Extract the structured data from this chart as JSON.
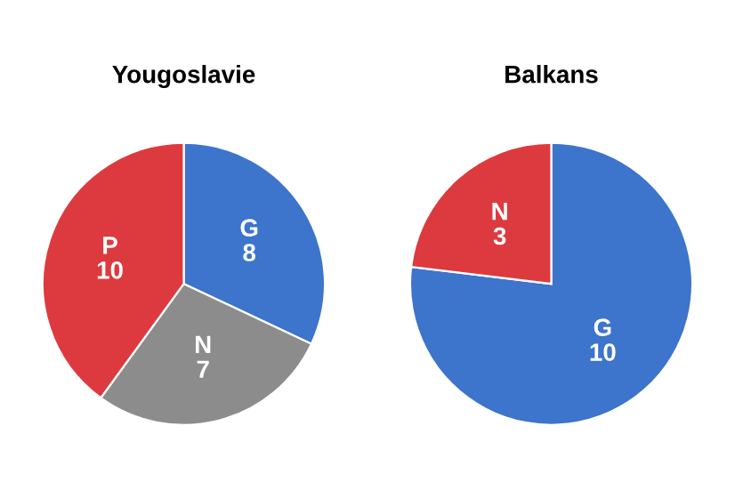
{
  "chart_data": [
    {
      "type": "pie",
      "title": "Yougoslavie",
      "categories": [
        "G",
        "N",
        "P"
      ],
      "values": [
        8,
        7,
        10
      ],
      "colors": [
        "#3d74cc",
        "#8c8c8c",
        "#dd3a3f"
      ],
      "data_labels": true
    },
    {
      "type": "pie",
      "title": "Balkans",
      "categories": [
        "G",
        "N"
      ],
      "values": [
        10,
        3
      ],
      "colors": [
        "#3d74cc",
        "#dd3a3f"
      ],
      "data_labels": true
    }
  ]
}
